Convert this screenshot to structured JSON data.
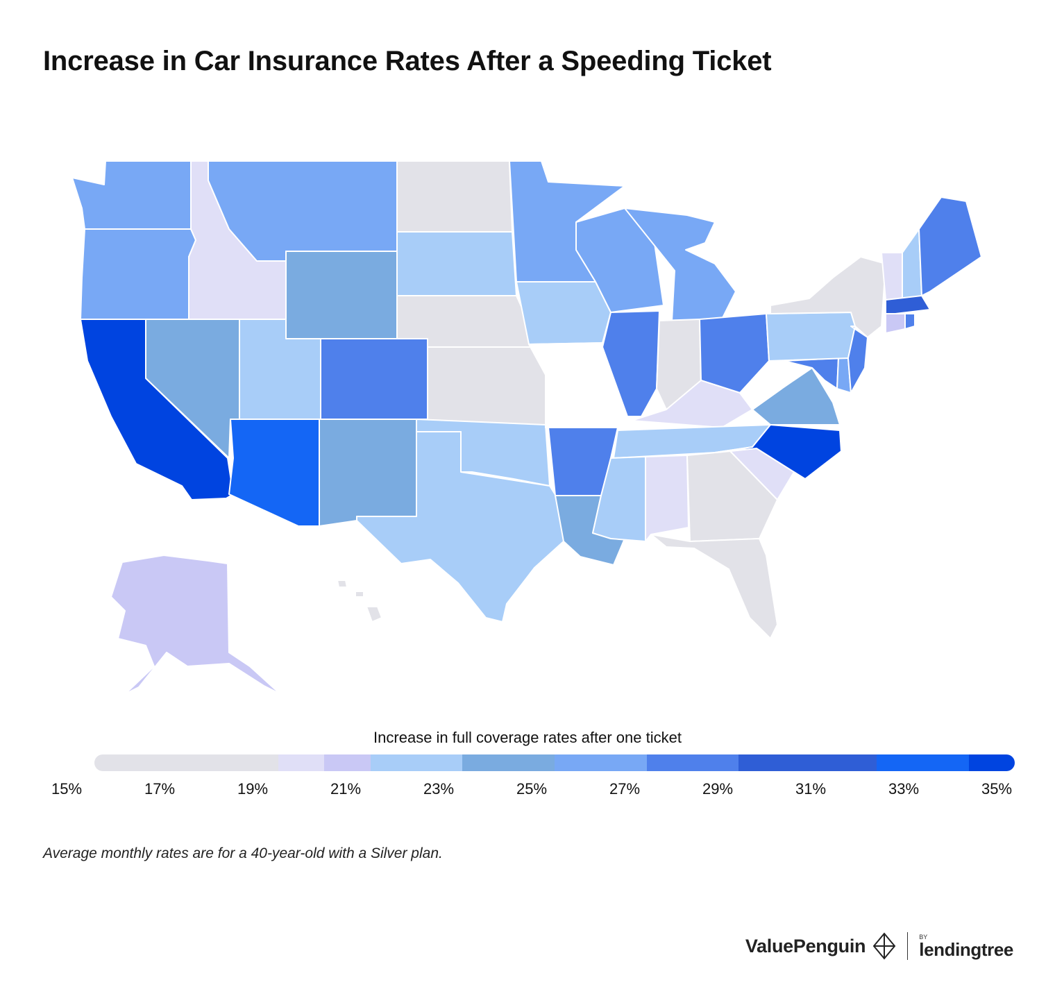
{
  "title": "Increase in Car Insurance Rates After a Speeding Ticket",
  "legend": {
    "title": "Increase in full coverage rates after one ticket",
    "ticks": [
      "15%",
      "17%",
      "19%",
      "21%",
      "23%",
      "25%",
      "27%",
      "29%",
      "31%",
      "33%",
      "35%"
    ],
    "segments": [
      {
        "range": [
          15,
          17
        ],
        "color": "#e2e2e8"
      },
      {
        "range": [
          17,
          19
        ],
        "color": "#e2e2e8"
      },
      {
        "range": [
          19,
          20
        ],
        "color": "#e0dff7"
      },
      {
        "range": [
          20,
          21
        ],
        "color": "#c9c8f5"
      },
      {
        "range": [
          21,
          23
        ],
        "color": "#a8cdf8"
      },
      {
        "range": [
          23,
          25
        ],
        "color": "#7aabe0"
      },
      {
        "range": [
          25,
          27
        ],
        "color": "#78a8f5"
      },
      {
        "range": [
          27,
          29
        ],
        "color": "#4f80eb"
      },
      {
        "range": [
          29,
          32
        ],
        "color": "#2f5ed6"
      },
      {
        "range": [
          32,
          34
        ],
        "color": "#1466f5"
      },
      {
        "range": [
          34,
          35
        ],
        "color": "#0044e0"
      }
    ]
  },
  "note": "Average monthly rates are for a 40-year-old with a Silver plan.",
  "brand": {
    "valuepenguin": "ValuePenguin",
    "by": "BY",
    "lendingtree": "lendingtree"
  },
  "map_data": {
    "measure": "increase in full coverage rates after one ticket",
    "states": [
      {
        "name": "Washington",
        "color": "#78a8f5"
      },
      {
        "name": "Oregon",
        "color": "#78a8f5"
      },
      {
        "name": "California",
        "color": "#0044e0"
      },
      {
        "name": "Nevada",
        "color": "#7aabe0"
      },
      {
        "name": "Idaho",
        "color": "#e0dff7"
      },
      {
        "name": "Montana",
        "color": "#78a8f5"
      },
      {
        "name": "Wyoming",
        "color": "#7aabe0"
      },
      {
        "name": "Utah",
        "color": "#a8cdf8"
      },
      {
        "name": "Arizona",
        "color": "#1466f5"
      },
      {
        "name": "Colorado",
        "color": "#4f80eb"
      },
      {
        "name": "New Mexico",
        "color": "#7aabe0"
      },
      {
        "name": "North Dakota",
        "color": "#e2e2e8"
      },
      {
        "name": "South Dakota",
        "color": "#a8cdf8"
      },
      {
        "name": "Nebraska",
        "color": "#e2e2e8"
      },
      {
        "name": "Kansas",
        "color": "#e2e2e8"
      },
      {
        "name": "Oklahoma",
        "color": "#a8cdf8"
      },
      {
        "name": "Texas",
        "color": "#a8cdf8"
      },
      {
        "name": "Minnesota",
        "color": "#78a8f5"
      },
      {
        "name": "Iowa",
        "color": "#a8cdf8"
      },
      {
        "name": "Missouri",
        "color": "#ffffff"
      },
      {
        "name": "Arkansas",
        "color": "#4f80eb"
      },
      {
        "name": "Louisiana",
        "color": "#7aabe0"
      },
      {
        "name": "Wisconsin",
        "color": "#78a8f5"
      },
      {
        "name": "Illinois",
        "color": "#4f80eb"
      },
      {
        "name": "Michigan",
        "color": "#78a8f5"
      },
      {
        "name": "Indiana",
        "color": "#e2e2e8"
      },
      {
        "name": "Ohio",
        "color": "#4f80eb"
      },
      {
        "name": "Kentucky",
        "color": "#e0dff7"
      },
      {
        "name": "Tennessee",
        "color": "#a8cdf8"
      },
      {
        "name": "Mississippi",
        "color": "#a8cdf8"
      },
      {
        "name": "Alabama",
        "color": "#e0dff7"
      },
      {
        "name": "Georgia",
        "color": "#e2e2e8"
      },
      {
        "name": "Florida",
        "color": "#e2e2e8"
      },
      {
        "name": "South Carolina",
        "color": "#e0dff7"
      },
      {
        "name": "North Carolina",
        "color": "#0044e0"
      },
      {
        "name": "Virginia",
        "color": "#7aabe0"
      },
      {
        "name": "West Virginia",
        "color": "#ffffff"
      },
      {
        "name": "Maryland",
        "color": "#4f80eb"
      },
      {
        "name": "Delaware",
        "color": "#78a8f5"
      },
      {
        "name": "Pennsylvania",
        "color": "#a8cdf8"
      },
      {
        "name": "New Jersey",
        "color": "#4f80eb"
      },
      {
        "name": "New York",
        "color": "#e2e2e8"
      },
      {
        "name": "Connecticut",
        "color": "#c9c8f5"
      },
      {
        "name": "Rhode Island",
        "color": "#4f80eb"
      },
      {
        "name": "Massachusetts",
        "color": "#2f5ed6"
      },
      {
        "name": "Vermont",
        "color": "#e0dff7"
      },
      {
        "name": "New Hampshire",
        "color": "#a8cdf8"
      },
      {
        "name": "Maine",
        "color": "#4f80eb"
      },
      {
        "name": "Alaska",
        "color": "#c9c8f5"
      },
      {
        "name": "Hawaii",
        "color": "#e2e2e8"
      }
    ]
  }
}
